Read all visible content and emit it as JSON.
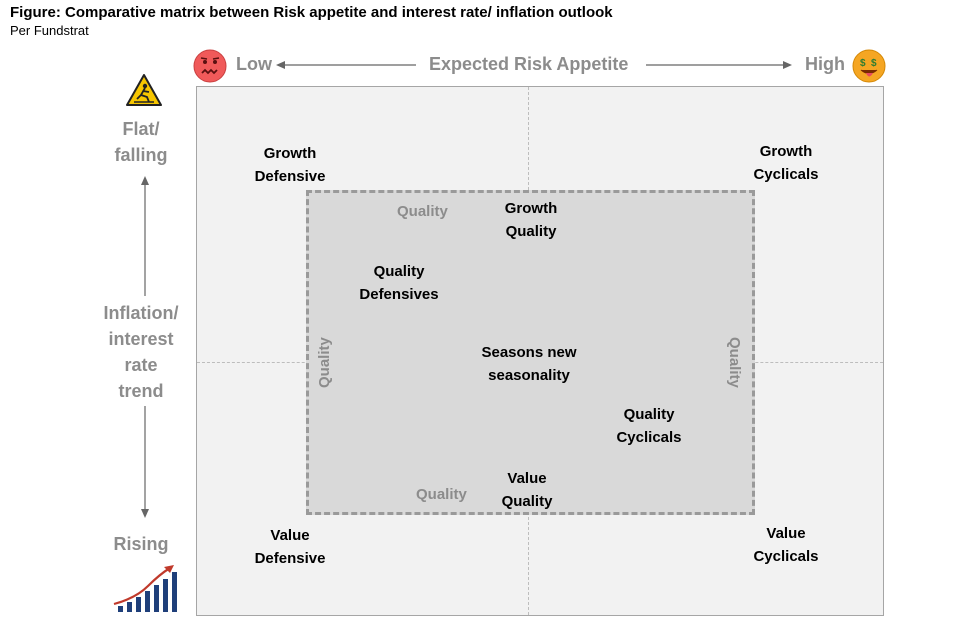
{
  "header": {
    "title": "Figure: Comparative matrix between Risk appetite and interest rate/ inflation outlook",
    "subtitle": "Per Fundstrat"
  },
  "x_axis": {
    "low": "Low",
    "label": "Expected Risk Appetite",
    "high": "High",
    "low_icon": "nauseated-face-icon",
    "high_icon": "money-mouth-face-icon"
  },
  "y_axis": {
    "top": [
      "Flat/",
      "falling"
    ],
    "label": [
      "Inflation/",
      "interest",
      "rate",
      "trend"
    ],
    "bottom": "Rising",
    "top_icon": "warning-falling-person-icon",
    "bottom_icon": "rising-bar-chart-icon"
  },
  "matrix": {
    "growth_defensive": [
      "Growth",
      "Defensive"
    ],
    "growth_cyclicals": [
      "Growth",
      "Cyclicals"
    ],
    "growth_quality": [
      "Growth",
      "Quality"
    ],
    "quality_defensives": [
      "Quality",
      "Defensives"
    ],
    "center": [
      "Seasons new",
      "seasonality"
    ],
    "quality_cyclicals": [
      "Quality",
      "Cyclicals"
    ],
    "value_quality": [
      "Value",
      "Quality"
    ],
    "value_defensive": [
      "Value",
      "Defensive"
    ],
    "value_cyclicals": [
      "Value",
      "Cyclicals"
    ],
    "quality_top": "Quality",
    "quality_left": "Quality",
    "quality_right": "Quality",
    "quality_bottom": "Quality"
  },
  "colors": {
    "axis_text": "#8c8c8c",
    "panel": "#f2f2f2",
    "inner": "#d9d9d9",
    "dash": "#9a9a9a",
    "emoji": "#f5a623",
    "chart_bars": "#1f3f7a",
    "arrow_red": "#c0392b"
  }
}
